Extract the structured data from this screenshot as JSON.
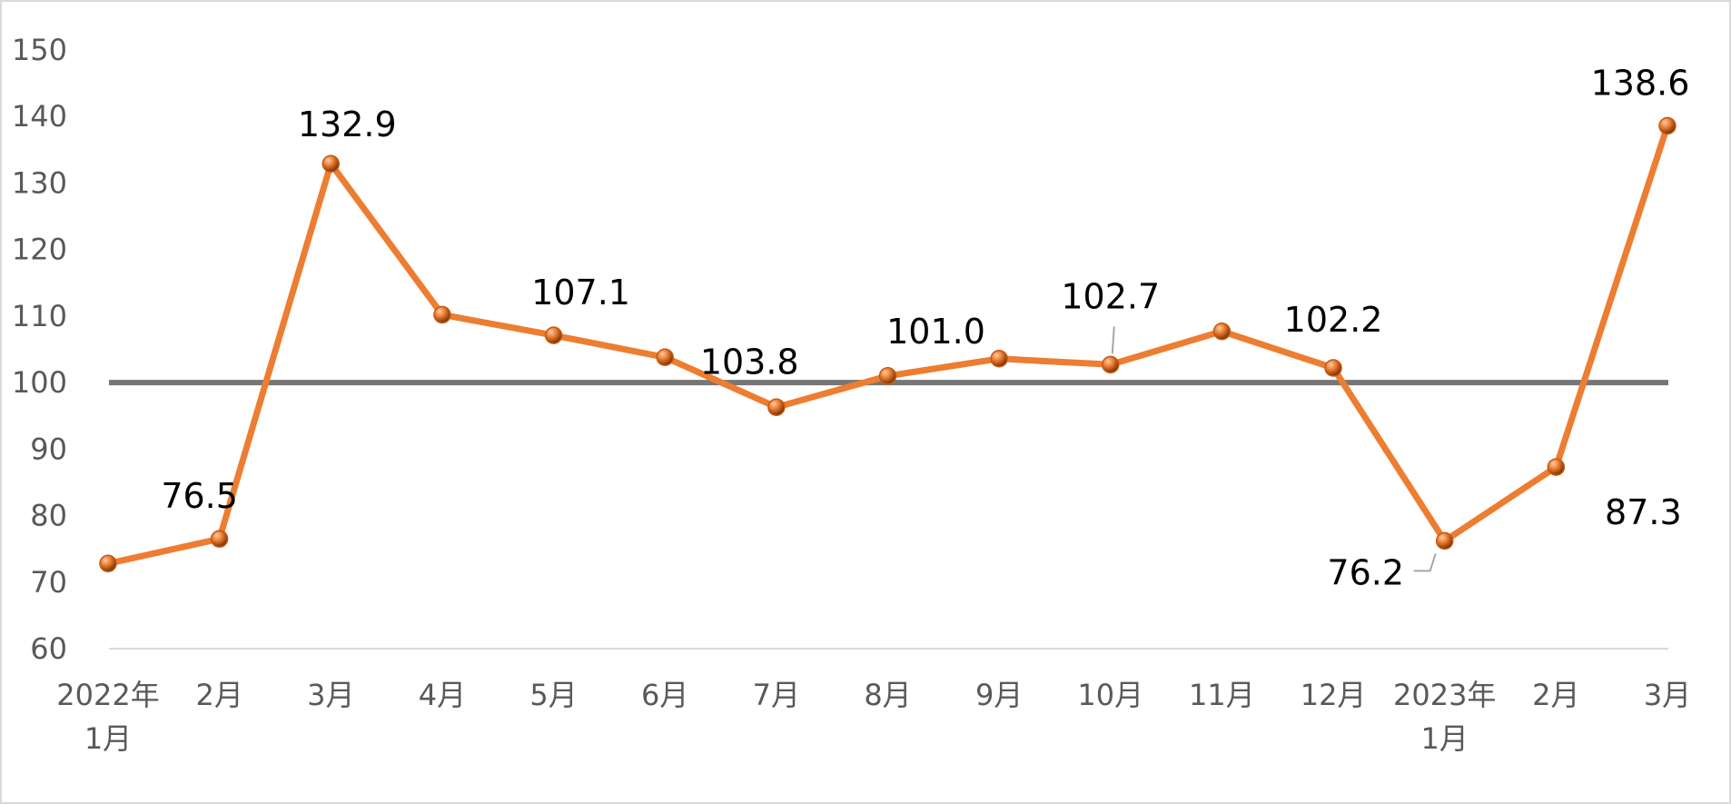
{
  "chart_data": {
    "type": "line",
    "title": "",
    "xlabel": "",
    "ylabel": "",
    "ylim": [
      60,
      150
    ],
    "y_ticks": [
      60,
      70,
      80,
      90,
      100,
      110,
      120,
      130,
      140,
      150
    ],
    "grid": false,
    "legend": "none",
    "reference_line": {
      "value": 100,
      "color": "#767676"
    },
    "categories": [
      [
        "2022年",
        "1月"
      ],
      [
        "2月"
      ],
      [
        "3月"
      ],
      [
        "4月"
      ],
      [
        "5月"
      ],
      [
        "6月"
      ],
      [
        "7月"
      ],
      [
        "8月"
      ],
      [
        "9月"
      ],
      [
        "10月"
      ],
      [
        "11月"
      ],
      [
        "12月"
      ],
      [
        "2023年",
        "1月"
      ],
      [
        "2月"
      ],
      [
        "3月"
      ]
    ],
    "series": [
      {
        "color": "#ed7d31",
        "marker_color": "#c55a11",
        "values": [
          72.8,
          76.5,
          132.9,
          110.2,
          107.1,
          103.8,
          96.3,
          101.0,
          103.6,
          102.7,
          107.7,
          102.2,
          76.2,
          87.3,
          138.6
        ]
      }
    ],
    "data_labels": [
      {
        "index": 1,
        "text": "76.5"
      },
      {
        "index": 2,
        "text": "132.9"
      },
      {
        "index": 4,
        "text": "107.1"
      },
      {
        "index": 5,
        "text": "103.8"
      },
      {
        "index": 7,
        "text": "101.0"
      },
      {
        "index": 9,
        "text": "102.7"
      },
      {
        "index": 11,
        "text": "102.2"
      },
      {
        "index": 12,
        "text": "76.2"
      },
      {
        "index": 13,
        "text": "87.3"
      },
      {
        "index": 14,
        "text": "138.6"
      }
    ]
  }
}
